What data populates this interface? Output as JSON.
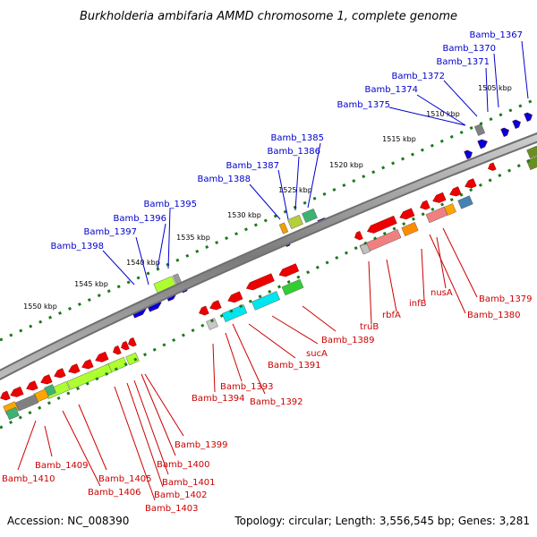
{
  "title": "Burkholderia ambifaria AMMD chromosome 1, complete genome",
  "footer": {
    "accession": "Accession: NC_008390",
    "summary": "Topology: circular; Length: 3,556,545 bp; Genes: 3,281"
  },
  "ticks": [
    "1505 kbp",
    "1510 kbp",
    "1515 kbp",
    "1520 kbp",
    "1525 kbp",
    "1530 kbp",
    "1535 kbp",
    "1540 kbp",
    "1545 kbp",
    "1550 kbp"
  ],
  "top_labels": [
    "Bamb_1367",
    "Bamb_1370",
    "Bamb_1371",
    "Bamb_1372",
    "Bamb_1374",
    "Bamb_1375",
    "Bamb_1385",
    "Bamb_1386",
    "Bamb_1387",
    "Bamb_1388",
    "Bamb_1395",
    "Bamb_1396",
    "Bamb_1397",
    "Bamb_1398"
  ],
  "bottom_labels": [
    "Bamb_1379",
    "Bamb_1380",
    "nusA",
    "infB",
    "rbfA",
    "truB",
    "Bamb_1389",
    "sucA",
    "Bamb_1391",
    "Bamb_1392",
    "Bamb_1393",
    "Bamb_1394",
    "Bamb_1399",
    "Bamb_1400",
    "Bamb_1401",
    "Bamb_1402",
    "Bamb_1403",
    "Bamb_1405",
    "Bamb_1406",
    "Bamb_1409",
    "Bamb_1410"
  ],
  "colors": {
    "forward_label": "#0000cc",
    "reverse_label": "#cc0000",
    "forward_gene": "#0000dd",
    "reverse_gene": "#ee0000",
    "backbone": "#8a8a8a",
    "tick_dot": "#1a7a1a"
  }
}
